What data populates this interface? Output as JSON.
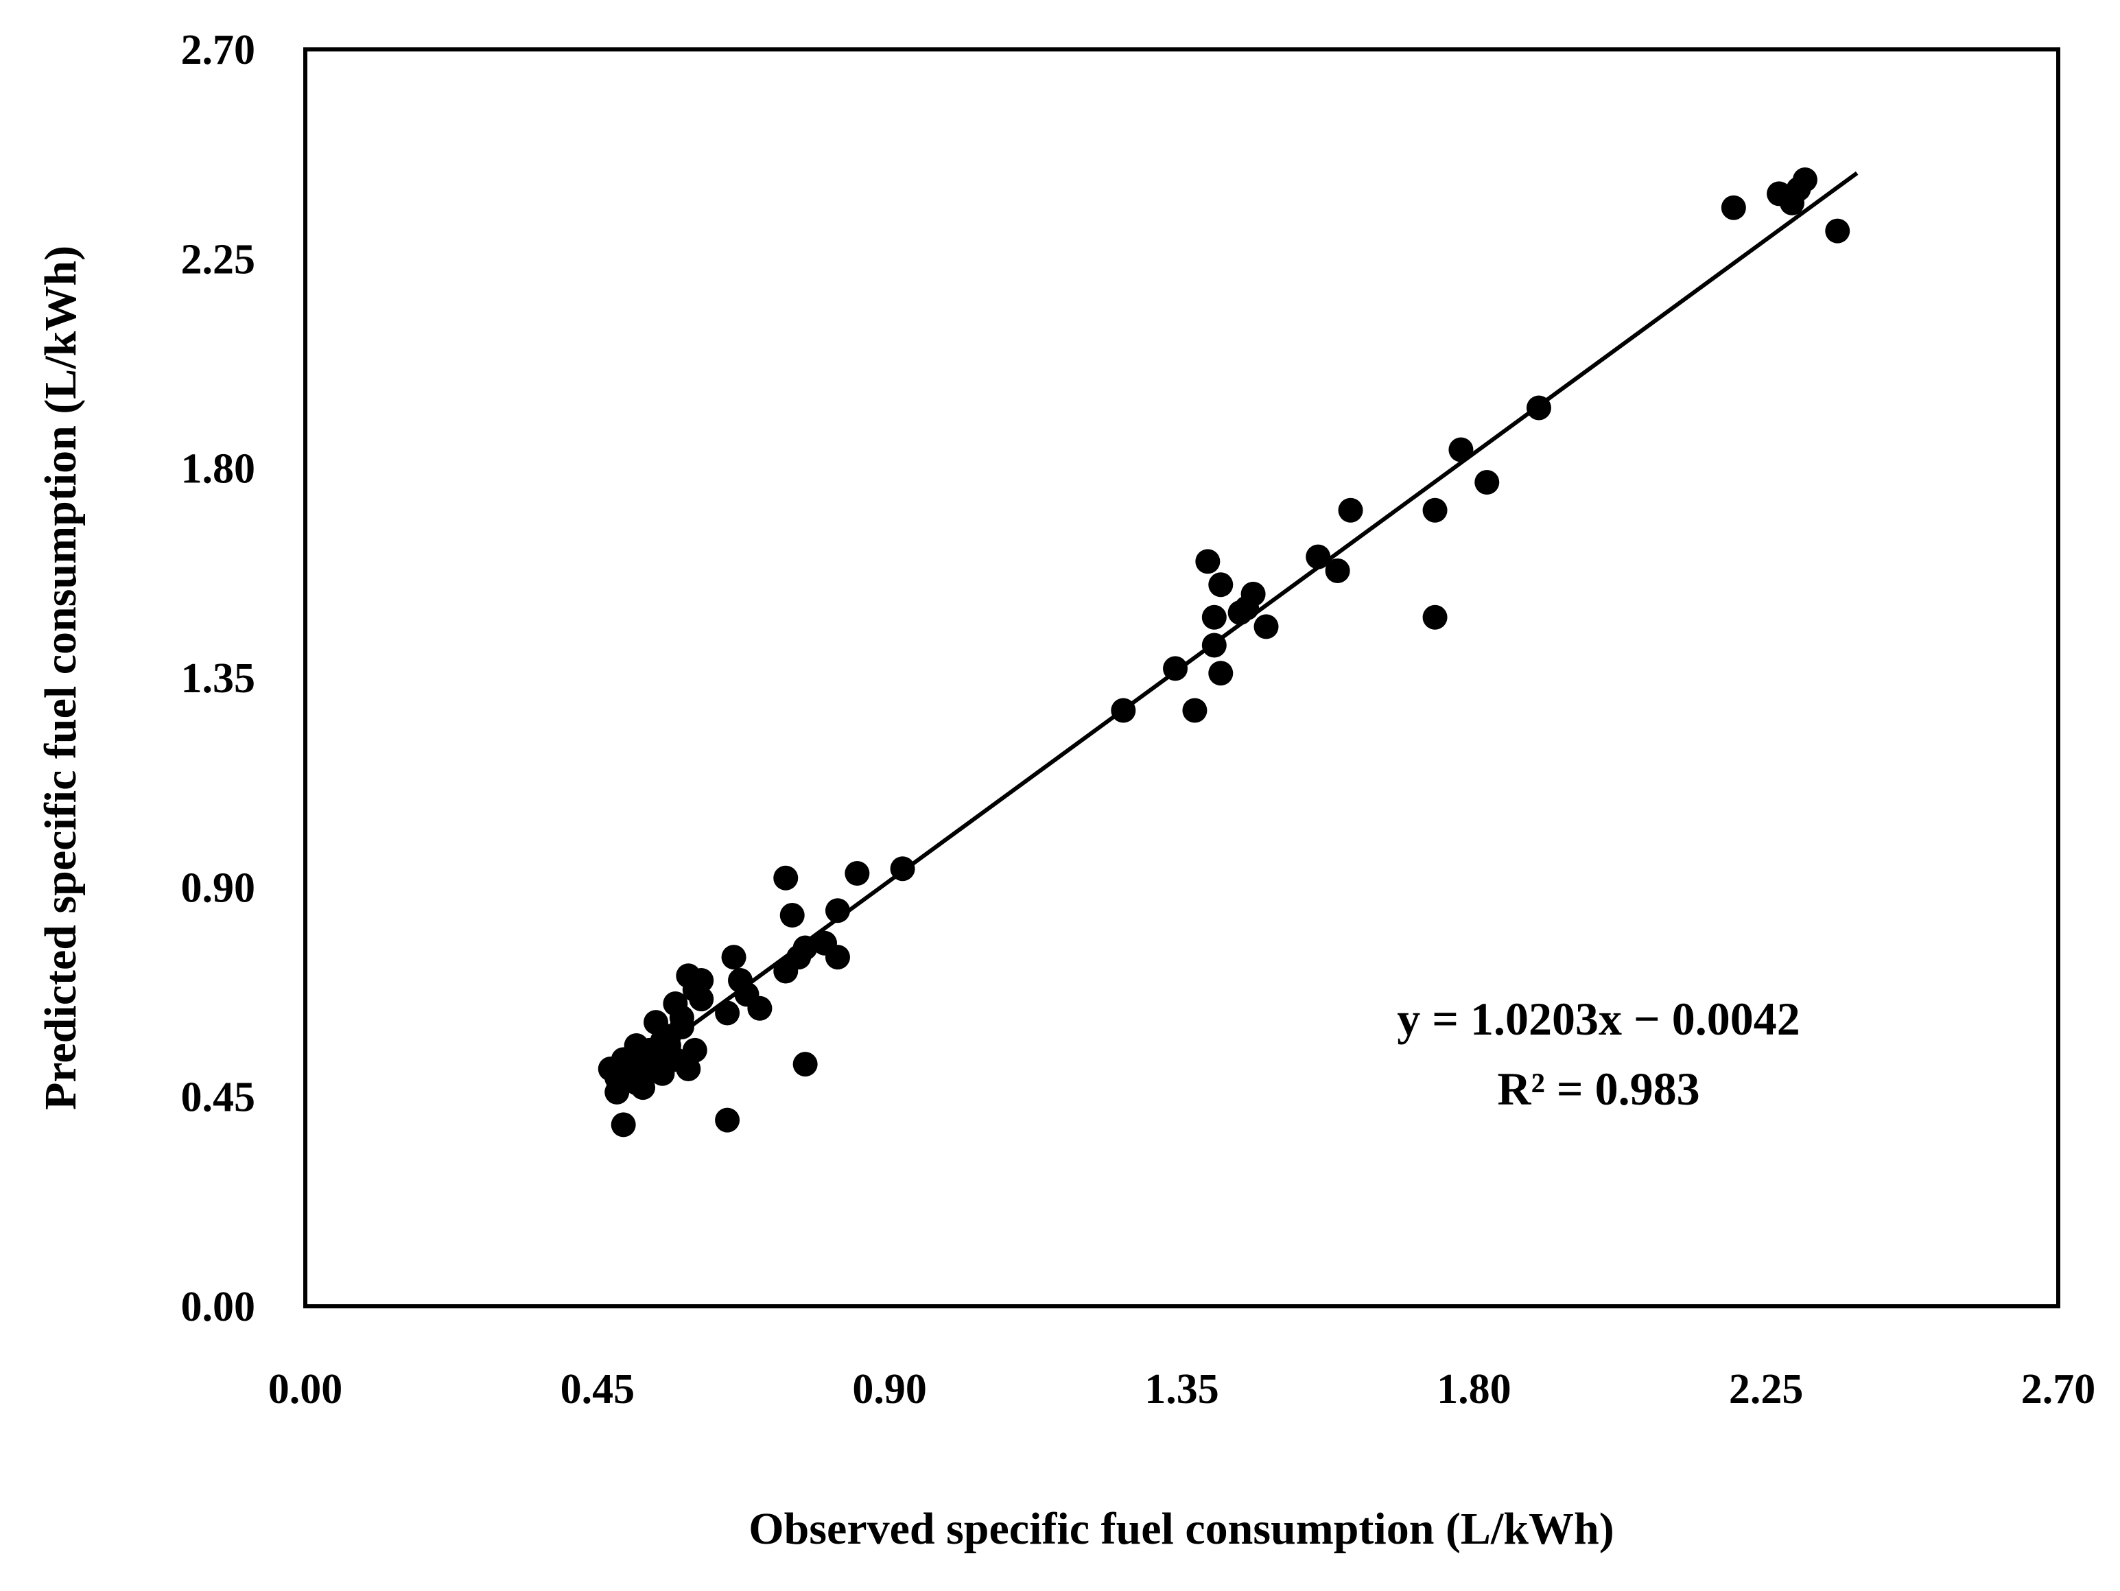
{
  "chart_data": {
    "type": "scatter",
    "xlabel": "Observed specific fuel consumption (L/kWh)",
    "ylabel": "Predicted specific fuel consumption (L/kWh)",
    "xlim": [
      0,
      2.7
    ],
    "ylim": [
      0,
      2.7
    ],
    "x_ticks": [
      "0.00",
      "0.45",
      "0.90",
      "1.35",
      "1.80",
      "2.25",
      "2.70"
    ],
    "y_ticks": [
      "0.00",
      "0.45",
      "0.90",
      "1.35",
      "1.80",
      "2.25",
      "2.70"
    ],
    "grid": false,
    "legend": "none",
    "marker_color": "#000000",
    "trendline": {
      "slope": 1.0203,
      "intercept": -0.0042,
      "x_range": [
        0.58,
        2.39
      ],
      "equation_label": "y = 1.0203x − 0.0042",
      "r2_label": "R² = 0.983"
    },
    "points": [
      [
        0.47,
        0.51
      ],
      [
        0.48,
        0.49
      ],
      [
        0.48,
        0.46
      ],
      [
        0.49,
        0.53
      ],
      [
        0.49,
        0.39
      ],
      [
        0.5,
        0.5
      ],
      [
        0.5,
        0.52
      ],
      [
        0.51,
        0.56
      ],
      [
        0.51,
        0.48
      ],
      [
        0.52,
        0.54
      ],
      [
        0.52,
        0.47
      ],
      [
        0.53,
        0.51
      ],
      [
        0.53,
        0.55
      ],
      [
        0.54,
        0.52
      ],
      [
        0.54,
        0.61
      ],
      [
        0.55,
        0.5
      ],
      [
        0.55,
        0.57
      ],
      [
        0.56,
        0.56
      ],
      [
        0.56,
        0.58
      ],
      [
        0.57,
        0.53
      ],
      [
        0.57,
        0.65
      ],
      [
        0.58,
        0.6
      ],
      [
        0.58,
        0.62
      ],
      [
        0.59,
        0.51
      ],
      [
        0.59,
        0.71
      ],
      [
        0.6,
        0.55
      ],
      [
        0.6,
        0.68
      ],
      [
        0.61,
        0.7
      ],
      [
        0.61,
        0.66
      ],
      [
        0.65,
        0.63
      ],
      [
        0.65,
        0.4
      ],
      [
        0.66,
        0.75
      ],
      [
        0.67,
        0.7
      ],
      [
        0.68,
        0.67
      ],
      [
        0.7,
        0.64
      ],
      [
        0.74,
        0.72
      ],
      [
        0.74,
        0.92
      ],
      [
        0.75,
        0.84
      ],
      [
        0.76,
        0.75
      ],
      [
        0.77,
        0.52
      ],
      [
        0.77,
        0.77
      ],
      [
        0.8,
        0.78
      ],
      [
        0.82,
        0.75
      ],
      [
        0.82,
        0.85
      ],
      [
        0.85,
        0.93
      ],
      [
        0.92,
        0.94
      ],
      [
        1.26,
        1.28
      ],
      [
        1.34,
        1.37
      ],
      [
        1.37,
        1.28
      ],
      [
        1.39,
        1.6
      ],
      [
        1.4,
        1.48
      ],
      [
        1.4,
        1.42
      ],
      [
        1.41,
        1.55
      ],
      [
        1.41,
        1.36
      ],
      [
        1.44,
        1.49
      ],
      [
        1.45,
        1.5
      ],
      [
        1.46,
        1.53
      ],
      [
        1.48,
        1.46
      ],
      [
        1.56,
        1.61
      ],
      [
        1.59,
        1.58
      ],
      [
        1.61,
        1.71
      ],
      [
        1.74,
        1.71
      ],
      [
        1.74,
        1.48
      ],
      [
        1.78,
        1.84
      ],
      [
        1.82,
        1.77
      ],
      [
        1.9,
        1.93
      ],
      [
        2.2,
        2.36
      ],
      [
        2.27,
        2.39
      ],
      [
        2.29,
        2.37
      ],
      [
        2.3,
        2.4
      ],
      [
        2.31,
        2.42
      ],
      [
        2.36,
        2.31
      ]
    ]
  }
}
